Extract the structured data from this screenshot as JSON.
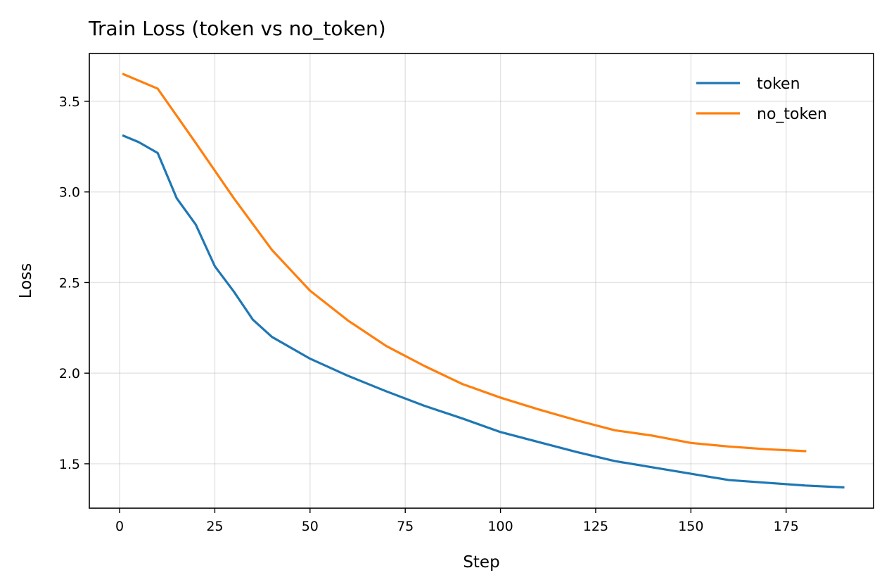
{
  "chart_data": {
    "type": "line",
    "title": "Train Loss (token vs no_token)",
    "xlabel": "Step",
    "ylabel": "Loss",
    "xlim": [
      -7.95,
      197.95
    ],
    "ylim": [
      1.255,
      3.764
    ],
    "xticks": [
      0,
      25,
      50,
      75,
      100,
      125,
      150,
      175
    ],
    "xtick_labels": [
      "0",
      "25",
      "50",
      "75",
      "100",
      "125",
      "150",
      "175"
    ],
    "yticks": [
      1.5,
      2.0,
      2.5,
      3.0,
      3.5
    ],
    "ytick_labels": [
      "1.5",
      "2.0",
      "2.5",
      "3.0",
      "3.5"
    ],
    "grid": true,
    "legend_position": "top-right",
    "series": [
      {
        "name": "token",
        "color": "#1f77b4",
        "x": [
          1,
          5,
          10,
          15,
          20,
          25,
          30,
          35,
          40,
          50,
          60,
          70,
          80,
          90,
          100,
          110,
          120,
          130,
          140,
          150,
          160,
          170,
          180,
          190
        ],
        "y": [
          3.31,
          3.275,
          3.215,
          2.965,
          2.82,
          2.59,
          2.45,
          2.295,
          2.2,
          2.08,
          1.985,
          1.9,
          1.82,
          1.75,
          1.675,
          1.62,
          1.565,
          1.515,
          1.48,
          1.445,
          1.41,
          1.395,
          1.38,
          1.37
        ]
      },
      {
        "name": "no_token",
        "color": "#ff7f0e",
        "x": [
          1,
          10,
          20,
          30,
          40,
          50,
          60,
          70,
          80,
          90,
          100,
          110,
          120,
          130,
          140,
          150,
          160,
          170,
          180
        ],
        "y": [
          3.65,
          3.57,
          3.27,
          2.965,
          2.68,
          2.455,
          2.29,
          2.15,
          2.04,
          1.94,
          1.865,
          1.8,
          1.74,
          1.685,
          1.655,
          1.615,
          1.595,
          1.58,
          1.57
        ]
      }
    ]
  }
}
